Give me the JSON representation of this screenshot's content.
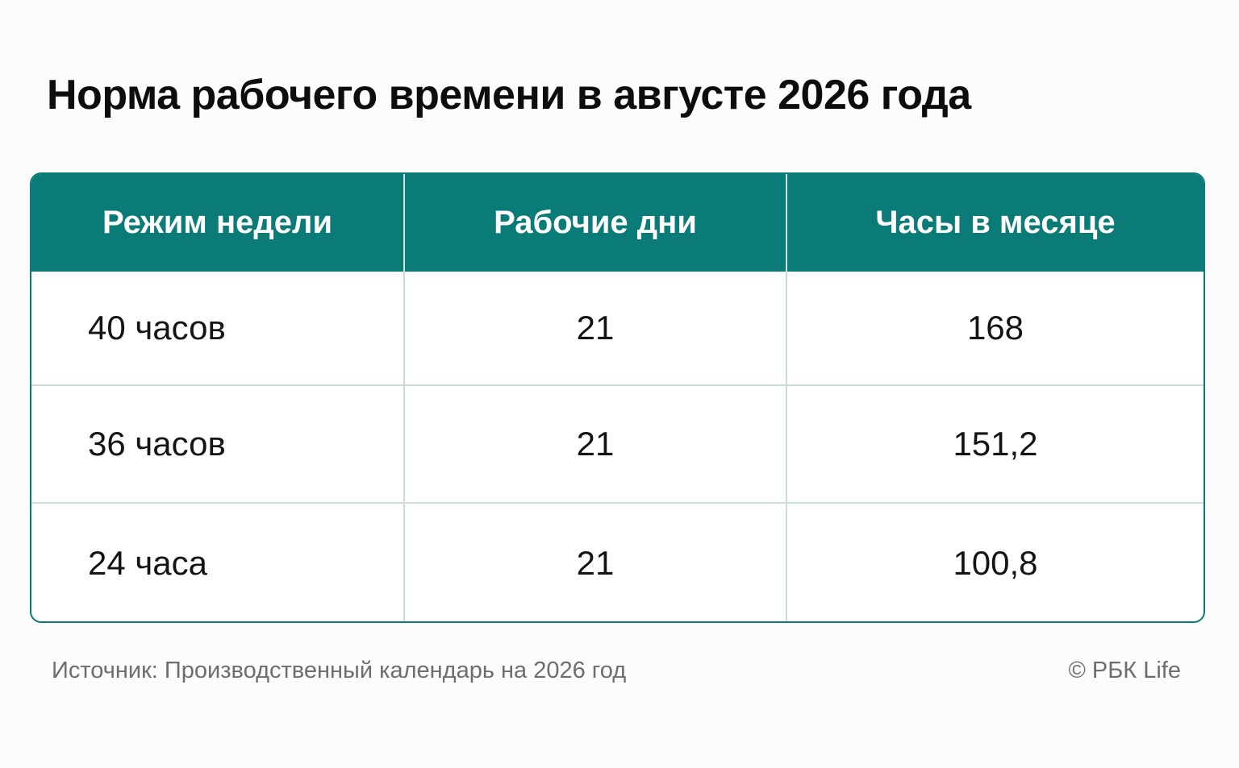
{
  "title": "Норма рабочего времени в августе 2026 года",
  "table": {
    "headers": [
      "Режим недели",
      "Рабочие дни",
      "Часы в месяце"
    ],
    "rows": [
      [
        "40 часов",
        "21",
        "168"
      ],
      [
        "36 часов",
        "21",
        "151,2"
      ],
      [
        "24 часа",
        "21",
        "100,8"
      ]
    ]
  },
  "footer": {
    "source": "Источник: Производственный календарь на 2026 год",
    "credit": "© РБК Life"
  },
  "colors": {
    "accent": "#0b7b77",
    "grid": "#c8dcdb",
    "muted_text": "#6d6d6d"
  }
}
